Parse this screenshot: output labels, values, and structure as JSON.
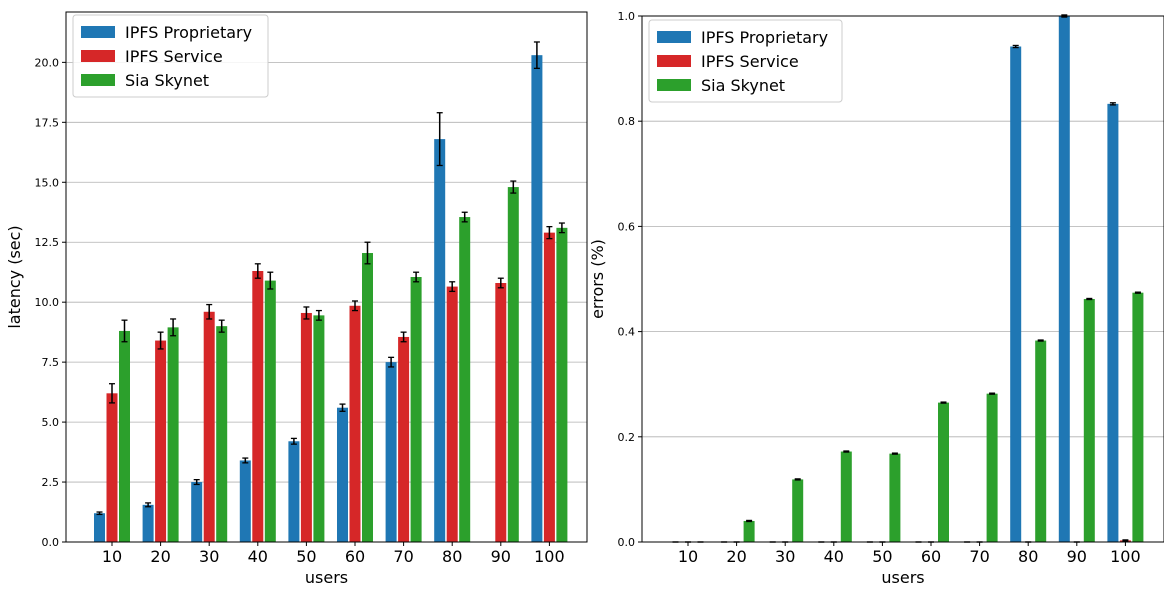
{
  "chart_data": [
    {
      "type": "bar",
      "title": "",
      "xlabel": "users",
      "ylabel": "latency (sec)",
      "ylim": [
        0,
        22.1
      ],
      "yticks": [
        0.0,
        2.5,
        5.0,
        7.5,
        10.0,
        12.5,
        15.0,
        17.5,
        20.0
      ],
      "ytick_labels": [
        "0.0",
        "2.5",
        "5.0",
        "7.5",
        "10.0",
        "12.5",
        "15.0",
        "17.5",
        "20.0"
      ],
      "grid": "horizontal",
      "legend_position": "top-left",
      "categories": [
        "10",
        "20",
        "30",
        "40",
        "50",
        "60",
        "70",
        "80",
        "90",
        "100"
      ],
      "series": [
        {
          "name": "IPFS Proprietary",
          "color": "#1f77b4",
          "values": [
            1.2,
            1.55,
            2.5,
            3.4,
            4.2,
            5.6,
            7.5,
            16.8,
            null,
            20.3
          ],
          "errors": [
            0.05,
            0.08,
            0.1,
            0.1,
            0.12,
            0.15,
            0.2,
            1.1,
            null,
            0.55
          ]
        },
        {
          "name": "IPFS Service",
          "color": "#d62728",
          "values": [
            6.2,
            8.4,
            9.6,
            11.3,
            9.55,
            9.85,
            8.55,
            10.65,
            10.8,
            12.9
          ],
          "errors": [
            0.4,
            0.35,
            0.3,
            0.3,
            0.25,
            0.2,
            0.2,
            0.2,
            0.2,
            0.25
          ]
        },
        {
          "name": "Sia Skynet",
          "color": "#2ca02c",
          "values": [
            8.8,
            8.95,
            9.0,
            10.9,
            9.45,
            12.05,
            11.05,
            13.55,
            14.8,
            13.1
          ],
          "errors": [
            0.45,
            0.35,
            0.25,
            0.35,
            0.2,
            0.45,
            0.2,
            0.2,
            0.25,
            0.2
          ]
        }
      ]
    },
    {
      "type": "bar",
      "title": "",
      "xlabel": "users",
      "ylabel": "errors (%)",
      "ylim": [
        0,
        1.0
      ],
      "yticks": [
        0.0,
        0.2,
        0.4,
        0.6,
        0.8,
        1.0
      ],
      "ytick_labels": [
        "0.0",
        "0.2",
        "0.4",
        "0.6",
        "0.8",
        "1.0"
      ],
      "grid": "horizontal",
      "legend_position": "top-left",
      "categories": [
        "10",
        "20",
        "30",
        "40",
        "50",
        "60",
        "70",
        "80",
        "90",
        "100"
      ],
      "series": [
        {
          "name": "IPFS Proprietary",
          "color": "#1f77b4",
          "values": [
            0,
            0,
            0,
            0,
            0,
            0,
            0,
            0.942,
            1.0,
            0.833
          ],
          "errors": [
            0,
            0,
            0,
            0,
            0,
            0,
            0,
            0.002,
            0.002,
            0.002
          ]
        },
        {
          "name": "IPFS Service",
          "color": "#d62728",
          "values": [
            0,
            0,
            0,
            0,
            0,
            0,
            0,
            0,
            0,
            0.003
          ],
          "errors": [
            0,
            0,
            0,
            0,
            0,
            0,
            0,
            0,
            0,
            0.001
          ]
        },
        {
          "name": "Sia Skynet",
          "color": "#2ca02c",
          "values": [
            0,
            0.04,
            0.119,
            0.172,
            0.168,
            0.265,
            0.282,
            0.383,
            0.462,
            0.474
          ],
          "errors": [
            0,
            0.001,
            0.001,
            0.001,
            0.001,
            0.001,
            0.001,
            0.001,
            0.001,
            0.001
          ]
        }
      ]
    }
  ]
}
